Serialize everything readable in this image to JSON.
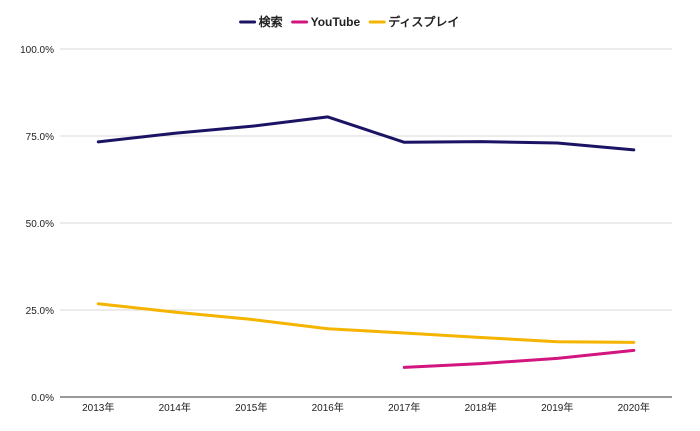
{
  "chart_data": {
    "type": "line",
    "title": "",
    "xlabel": "",
    "ylabel": "",
    "categories": [
      "2013年",
      "2014年",
      "2015年",
      "2016年",
      "2017年",
      "2018年",
      "2019年",
      "2020年"
    ],
    "ylim": [
      0,
      1
    ],
    "yticks": [
      {
        "value": 0,
        "label": "0.0%"
      },
      {
        "value": 0.25,
        "label": "25.0%"
      },
      {
        "value": 0.5,
        "label": "50.0%"
      },
      {
        "value": 0.75,
        "label": "75.0%"
      },
      {
        "value": 1,
        "label": "100.0%"
      }
    ],
    "grid": true,
    "legend_position": "top-center",
    "series": [
      {
        "name": "検索",
        "color": "#1b1464",
        "values": [
          0.733,
          0.758,
          0.778,
          0.805,
          0.732,
          0.734,
          0.73,
          0.71
        ]
      },
      {
        "name": "YouTube",
        "color": "#d2157f",
        "values": [
          null,
          null,
          null,
          null,
          0.085,
          0.096,
          0.111,
          0.134
        ]
      },
      {
        "name": "ディスプレイ",
        "color": "#f4b400",
        "values": [
          0.268,
          0.244,
          0.223,
          0.196,
          0.184,
          0.171,
          0.159,
          0.157
        ]
      }
    ]
  }
}
